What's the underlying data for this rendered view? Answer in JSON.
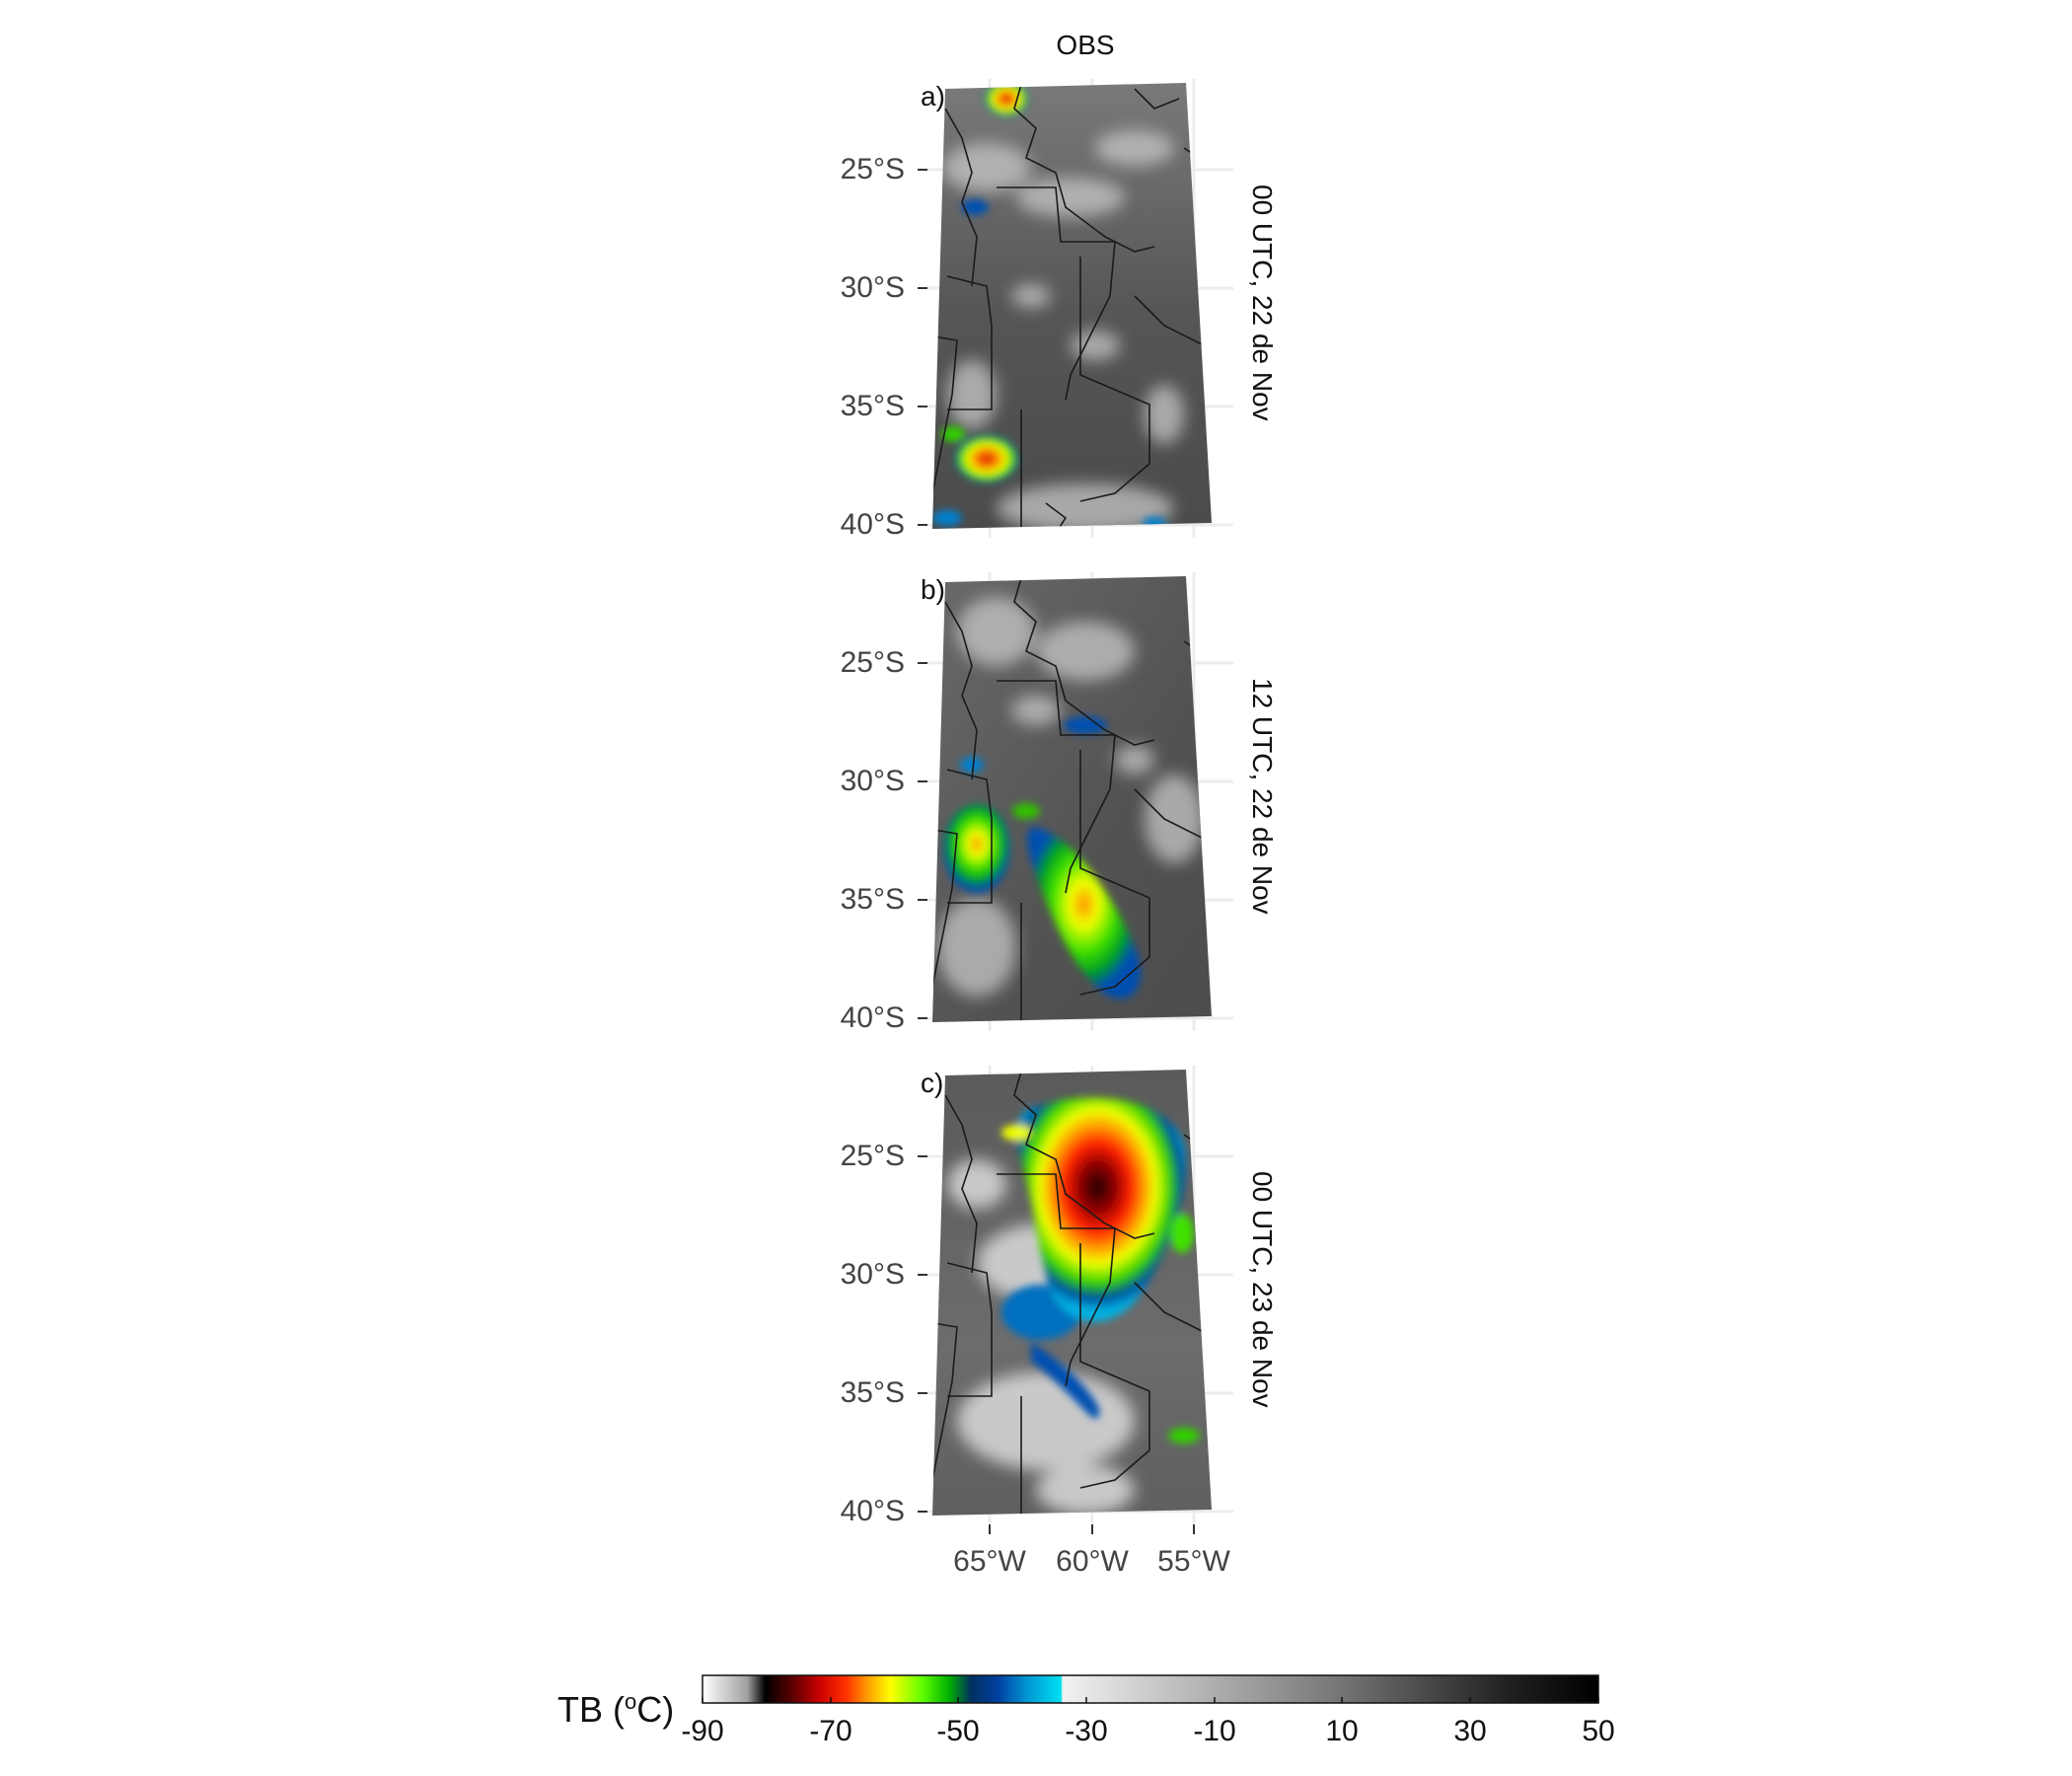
{
  "title": "OBS",
  "panels": [
    {
      "label": "a)",
      "time": "00 UTC, 22 de Nov"
    },
    {
      "label": "b)",
      "time": "12 UTC, 22 de Nov"
    },
    {
      "label": "c)",
      "time": "00 UTC, 23 de Nov"
    }
  ],
  "lat_ticks": [
    "25°S",
    "30°S",
    "35°S",
    "40°S"
  ],
  "lon_ticks": [
    "65°W",
    "60°W",
    "55°W"
  ],
  "colorbar": {
    "title_prefix": "TB (",
    "title_sup": "o",
    "title_suffix": "C)",
    "ticks": [
      "-90",
      "-70",
      "-50",
      "-30",
      "-10",
      "10",
      "30",
      "50"
    ],
    "range": [
      -90,
      50
    ]
  },
  "colors": {
    "background_gray": "#555555",
    "boundary": "#1a1a1a"
  }
}
